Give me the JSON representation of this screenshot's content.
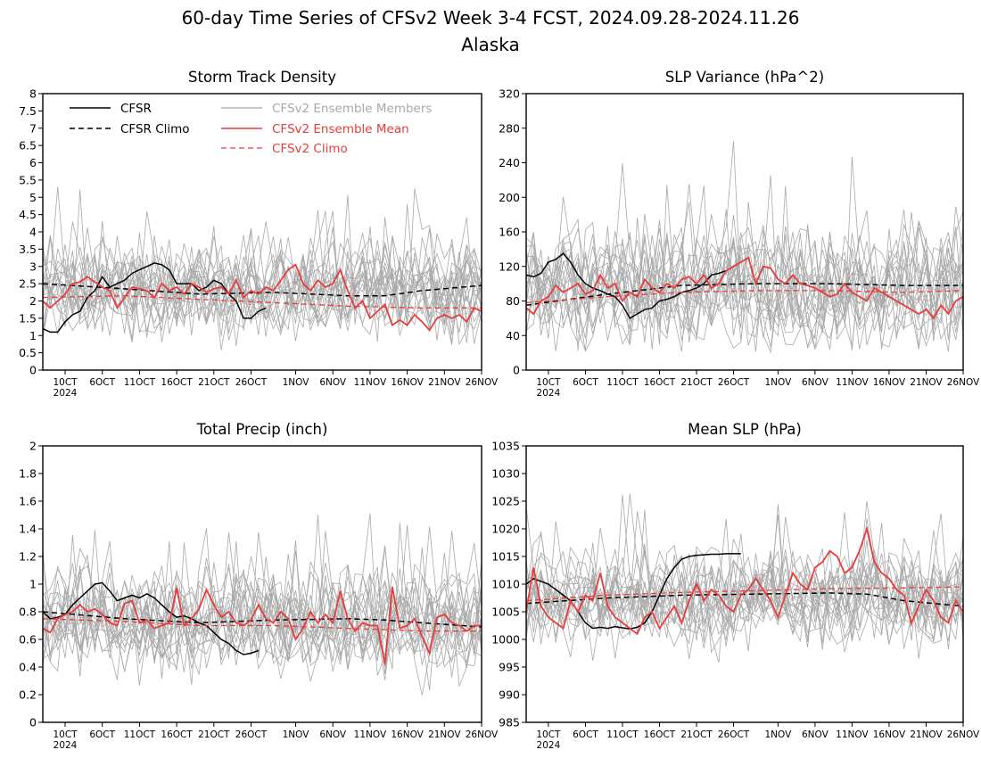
{
  "title_line1": "60-day Time Series of CFSv2 Week 3-4 FCST, 2024.09.28-2024.11.26",
  "title_line2": "Alaska",
  "legend": {
    "cfsr": "CFSR",
    "cfsr_climo": "CFSR Climo",
    "members": "CFSv2 Ensemble Members",
    "ens_mean": "CFSv2 Ensemble Mean",
    "cfsv2_climo": "CFSv2 Climo"
  },
  "colors": {
    "cfsr": "#000000",
    "members": "#a8a8a8",
    "ens_mean": "#e83c3c",
    "cfsv2_climo": "#e83c3c"
  },
  "x_ticks": [
    {
      "day": 12,
      "label": "10CT",
      "sub": "2024"
    },
    {
      "day": 17,
      "label": "6OCT"
    },
    {
      "day": 22,
      "label": "11OCT"
    },
    {
      "day": 27,
      "label": "16OCT"
    },
    {
      "day": 32,
      "label": "21OCT"
    },
    {
      "day": 37,
      "label": "26OCT"
    },
    {
      "day": 43,
      "label": "1NOV"
    },
    {
      "day": 48,
      "label": "6NOV"
    },
    {
      "day": 53,
      "label": "11NOV"
    },
    {
      "day": 58,
      "label": "16NOV"
    },
    {
      "day": 63,
      "label": "21NOV"
    },
    {
      "day": 68,
      "label": "26NOV"
    }
  ],
  "chart_data": [
    {
      "type": "line",
      "title": "Storm Track Density",
      "ylim": [
        0,
        8
      ],
      "yticks": [
        "0",
        "0.5",
        "1",
        "1.5",
        "2",
        "2.5",
        "3",
        "3.5",
        "4",
        "4.5",
        "5",
        "5.5",
        "6",
        "6.5",
        "7",
        "7.5",
        "8"
      ],
      "x_range_days": [
        9,
        68
      ],
      "members": {
        "count": 20,
        "center": 2.3,
        "spread": 0.9,
        "min": 0.05
      },
      "series": [
        {
          "name": "CFSR",
          "style": "solid",
          "x": [
            9,
            10,
            11,
            12,
            13,
            14,
            15,
            16,
            17,
            18,
            19,
            20,
            21,
            22,
            23,
            24,
            25,
            26,
            27,
            28,
            29,
            30,
            31,
            32,
            33,
            34,
            35,
            36,
            37,
            38,
            39
          ],
          "values": [
            1.2,
            1.1,
            1.1,
            1.4,
            1.6,
            1.7,
            2.1,
            2.3,
            2.7,
            2.4,
            2.5,
            2.6,
            2.8,
            2.9,
            3.0,
            3.1,
            3.05,
            2.9,
            2.5,
            2.5,
            2.5,
            2.3,
            2.4,
            2.6,
            2.5,
            2.2,
            2.0,
            1.5,
            1.5,
            1.7,
            1.8
          ]
        },
        {
          "name": "CFSR Climo",
          "style": "dashed",
          "x": [
            9,
            20,
            30,
            40,
            50,
            55,
            60,
            68
          ],
          "values": [
            2.5,
            2.35,
            2.2,
            2.25,
            2.15,
            2.15,
            2.3,
            2.45
          ]
        },
        {
          "name": "CFSv2 Ensemble Mean",
          "style": "solid",
          "x": [
            9,
            10,
            11,
            12,
            13,
            14,
            15,
            16,
            17,
            18,
            19,
            20,
            21,
            22,
            23,
            24,
            25,
            26,
            27,
            28,
            29,
            30,
            31,
            32,
            33,
            34,
            35,
            36,
            37,
            38,
            39,
            40,
            41,
            42,
            43,
            44,
            45,
            46,
            47,
            48,
            49,
            50,
            51,
            52,
            53,
            54,
            55,
            56,
            57,
            58,
            59,
            60,
            61,
            62,
            63,
            64,
            65,
            66,
            67,
            68
          ],
          "values": [
            2.0,
            1.8,
            2.0,
            2.2,
            2.5,
            2.55,
            2.7,
            2.55,
            2.4,
            2.3,
            1.8,
            2.1,
            2.4,
            2.35,
            2.3,
            2.1,
            2.5,
            2.3,
            2.4,
            2.2,
            2.5,
            2.4,
            2.25,
            2.35,
            2.4,
            2.2,
            2.6,
            2.1,
            2.3,
            2.2,
            2.4,
            2.3,
            2.6,
            2.9,
            3.05,
            2.5,
            2.3,
            2.6,
            2.4,
            2.5,
            2.9,
            2.3,
            1.8,
            2.0,
            1.5,
            1.7,
            1.9,
            1.3,
            1.45,
            1.3,
            1.6,
            1.4,
            1.15,
            1.5,
            1.6,
            1.5,
            1.6,
            1.4,
            1.8,
            1.7
          ]
        },
        {
          "name": "CFSv2 Climo",
          "style": "dashed",
          "x": [
            9,
            20,
            30,
            40,
            50,
            60,
            68
          ],
          "values": [
            2.1,
            2.15,
            2.05,
            1.95,
            1.85,
            1.8,
            1.8
          ]
        }
      ]
    },
    {
      "type": "line",
      "title": "SLP Variance (hPa^2)",
      "ylim": [
        0,
        320
      ],
      "yticks": [
        "0",
        "40",
        "80",
        "120",
        "160",
        "200",
        "240",
        "280",
        "320"
      ],
      "x_range_days": [
        9,
        68
      ],
      "members": {
        "count": 20,
        "center": 95,
        "spread": 45,
        "min": 20
      },
      "series": [
        {
          "name": "CFSR",
          "style": "solid",
          "x": [
            9,
            10,
            11,
            12,
            13,
            14,
            15,
            16,
            17,
            18,
            19,
            20,
            21,
            22,
            23,
            24,
            25,
            26,
            27,
            28,
            29,
            30,
            31,
            32,
            33,
            34,
            35,
            36,
            37,
            38,
            39
          ],
          "values": [
            110,
            108,
            112,
            125,
            128,
            135,
            125,
            110,
            100,
            95,
            92,
            88,
            85,
            75,
            60,
            65,
            70,
            72,
            80,
            82,
            85,
            90,
            92,
            95,
            100,
            110,
            112,
            115,
            120,
            125,
            130
          ]
        },
        {
          "name": "CFSR Climo",
          "style": "dashed",
          "x": [
            9,
            20,
            30,
            40,
            50,
            60,
            68
          ],
          "values": [
            75,
            88,
            98,
            100,
            100,
            98,
            98
          ]
        },
        {
          "name": "CFSv2 Ensemble Mean",
          "style": "solid",
          "x": [
            9,
            10,
            11,
            12,
            13,
            14,
            15,
            16,
            17,
            18,
            19,
            20,
            21,
            22,
            23,
            24,
            25,
            26,
            27,
            28,
            29,
            30,
            31,
            32,
            33,
            34,
            35,
            36,
            37,
            38,
            39,
            40,
            41,
            42,
            43,
            44,
            45,
            46,
            47,
            48,
            49,
            50,
            51,
            52,
            53,
            54,
            55,
            56,
            57,
            58,
            59,
            60,
            61,
            62,
            63,
            64,
            65,
            66,
            67,
            68
          ],
          "values": [
            72,
            65,
            80,
            85,
            98,
            90,
            95,
            100,
            88,
            92,
            110,
            95,
            100,
            80,
            90,
            85,
            105,
            95,
            90,
            100,
            95,
            105,
            108,
            100,
            110,
            95,
            100,
            115,
            120,
            125,
            130,
            100,
            120,
            118,
            105,
            100,
            110,
            100,
            98,
            95,
            90,
            85,
            88,
            100,
            90,
            85,
            80,
            95,
            90,
            85,
            80,
            75,
            70,
            65,
            70,
            60,
            75,
            65,
            80,
            85
          ]
        },
        {
          "name": "CFSv2 Climo",
          "style": "dashed",
          "x": [
            9,
            20,
            30,
            40,
            50,
            60,
            68
          ],
          "values": [
            78,
            85,
            90,
            92,
            92,
            90,
            92
          ]
        }
      ]
    },
    {
      "type": "line",
      "title": "Total Precip (inch)",
      "ylim": [
        0,
        2
      ],
      "yticks": [
        "0",
        "0.2",
        "0.4",
        "0.6",
        "0.8",
        "1",
        "1.2",
        "1.4",
        "1.6",
        "1.8",
        "2"
      ],
      "x_range_days": [
        9,
        68
      ],
      "members": {
        "count": 20,
        "center": 0.72,
        "spread": 0.25,
        "min": 0.15
      },
      "series": [
        {
          "name": "CFSR",
          "style": "solid",
          "x": [
            9,
            10,
            11,
            12,
            13,
            14,
            15,
            16,
            17,
            18,
            19,
            20,
            21,
            22,
            23,
            24,
            25,
            26,
            27,
            28,
            29,
            30,
            31,
            32,
            33,
            34,
            35,
            36,
            37,
            38
          ],
          "values": [
            0.8,
            0.75,
            0.76,
            0.78,
            0.85,
            0.9,
            0.95,
            1.0,
            1.01,
            0.95,
            0.88,
            0.9,
            0.92,
            0.9,
            0.93,
            0.9,
            0.85,
            0.8,
            0.76,
            0.77,
            0.75,
            0.72,
            0.7,
            0.65,
            0.6,
            0.57,
            0.52,
            0.49,
            0.5,
            0.52
          ]
        },
        {
          "name": "CFSR Climo",
          "style": "dashed",
          "x": [
            9,
            20,
            30,
            40,
            50,
            55,
            60,
            68
          ],
          "values": [
            0.8,
            0.75,
            0.72,
            0.74,
            0.75,
            0.74,
            0.72,
            0.69
          ]
        },
        {
          "name": "CFSv2 Ensemble Mean",
          "style": "solid",
          "x": [
            9,
            10,
            11,
            12,
            13,
            14,
            15,
            16,
            17,
            18,
            19,
            20,
            21,
            22,
            23,
            24,
            25,
            26,
            27,
            28,
            29,
            30,
            31,
            32,
            33,
            34,
            35,
            36,
            37,
            38,
            39,
            40,
            41,
            42,
            43,
            44,
            45,
            46,
            47,
            48,
            49,
            50,
            51,
            52,
            53,
            54,
            55,
            56,
            57,
            58,
            59,
            60,
            61,
            62,
            63,
            64,
            65,
            66,
            67,
            68
          ],
          "values": [
            0.68,
            0.65,
            0.75,
            0.78,
            0.8,
            0.85,
            0.8,
            0.82,
            0.78,
            0.72,
            0.7,
            0.86,
            0.88,
            0.72,
            0.74,
            0.68,
            0.7,
            0.72,
            0.97,
            0.7,
            0.75,
            0.82,
            0.96,
            0.85,
            0.76,
            0.8,
            0.72,
            0.7,
            0.74,
            0.85,
            0.75,
            0.72,
            0.8,
            0.75,
            0.6,
            0.68,
            0.8,
            0.72,
            0.78,
            0.72,
            0.95,
            0.75,
            0.66,
            0.72,
            0.7,
            0.7,
            0.42,
            0.98,
            0.68,
            0.7,
            0.75,
            0.62,
            0.5,
            0.76,
            0.78,
            0.72,
            0.7,
            0.66,
            0.7,
            0.7
          ]
        },
        {
          "name": "CFSv2 Climo",
          "style": "dashed",
          "x": [
            9,
            20,
            30,
            40,
            50,
            60,
            68
          ],
          "values": [
            0.75,
            0.73,
            0.7,
            0.7,
            0.68,
            0.66,
            0.66
          ]
        }
      ]
    },
    {
      "type": "line",
      "title": "Mean SLP (hPa)",
      "ylim": [
        985,
        1035
      ],
      "yticks": [
        "985",
        "990",
        "995",
        "1000",
        "1005",
        "1010",
        "1015",
        "1020",
        "1025",
        "1030",
        "1035"
      ],
      "x_range_days": [
        9,
        68
      ],
      "members": {
        "count": 20,
        "center": 1007,
        "spread": 5.5,
        "min": 990
      },
      "series": [
        {
          "name": "CFSR",
          "style": "solid",
          "x": [
            9,
            10,
            11,
            12,
            13,
            14,
            15,
            16,
            17,
            18,
            19,
            20,
            21,
            22,
            23,
            24,
            25,
            26,
            27,
            28,
            29,
            30,
            31,
            32,
            33,
            34,
            35,
            36,
            37,
            38
          ],
          "values": [
            1010,
            1011,
            1010.5,
            1010,
            1009,
            1008,
            1007,
            1005,
            1003,
            1002,
            1002.2,
            1002,
            1002.3,
            1002.1,
            1001.9,
            1002.2,
            1003,
            1005,
            1008,
            1011,
            1013,
            1014.5,
            1015,
            1015.2,
            1015.3,
            1015.4,
            1015.4,
            1015.5,
            1015.5,
            1015.5
          ]
        },
        {
          "name": "CFSR Climo",
          "style": "dashed",
          "x": [
            9,
            20,
            30,
            40,
            50,
            55,
            60,
            68
          ],
          "values": [
            1006.5,
            1007.5,
            1008,
            1008.2,
            1008.4,
            1008.2,
            1007,
            1006
          ]
        },
        {
          "name": "CFSv2 Ensemble Mean",
          "style": "solid",
          "x": [
            9,
            10,
            11,
            12,
            13,
            14,
            15,
            16,
            17,
            18,
            19,
            20,
            21,
            22,
            23,
            24,
            25,
            26,
            27,
            28,
            29,
            30,
            31,
            32,
            33,
            34,
            35,
            36,
            37,
            38,
            39,
            40,
            41,
            42,
            43,
            44,
            45,
            46,
            47,
            48,
            49,
            50,
            51,
            52,
            53,
            54,
            55,
            56,
            57,
            58,
            59,
            60,
            61,
            62,
            63,
            64,
            65,
            66,
            67,
            68
          ],
          "values": [
            1005,
            1013,
            1006,
            1004,
            1003,
            1002,
            1007,
            1005,
            1008,
            1007,
            1012,
            1006,
            1004,
            1003,
            1002,
            1001,
            1004,
            1005,
            1002,
            1004,
            1006,
            1003,
            1007,
            1010,
            1007,
            1009,
            1008,
            1006,
            1005,
            1008,
            1009,
            1011,
            1009,
            1007,
            1004,
            1008,
            1012,
            1010,
            1009,
            1013,
            1014,
            1016,
            1015,
            1012,
            1013,
            1016,
            1020,
            1014,
            1012,
            1011,
            1009,
            1008,
            1003,
            1006,
            1009,
            1007,
            1004,
            1003,
            1007,
            1005
          ]
        },
        {
          "name": "CFSv2 Climo",
          "style": "dashed",
          "x": [
            9,
            20,
            30,
            40,
            50,
            60,
            68
          ],
          "values": [
            1007,
            1008,
            1008.5,
            1008.8,
            1009.2,
            1009.3,
            1009.5
          ]
        }
      ]
    }
  ]
}
